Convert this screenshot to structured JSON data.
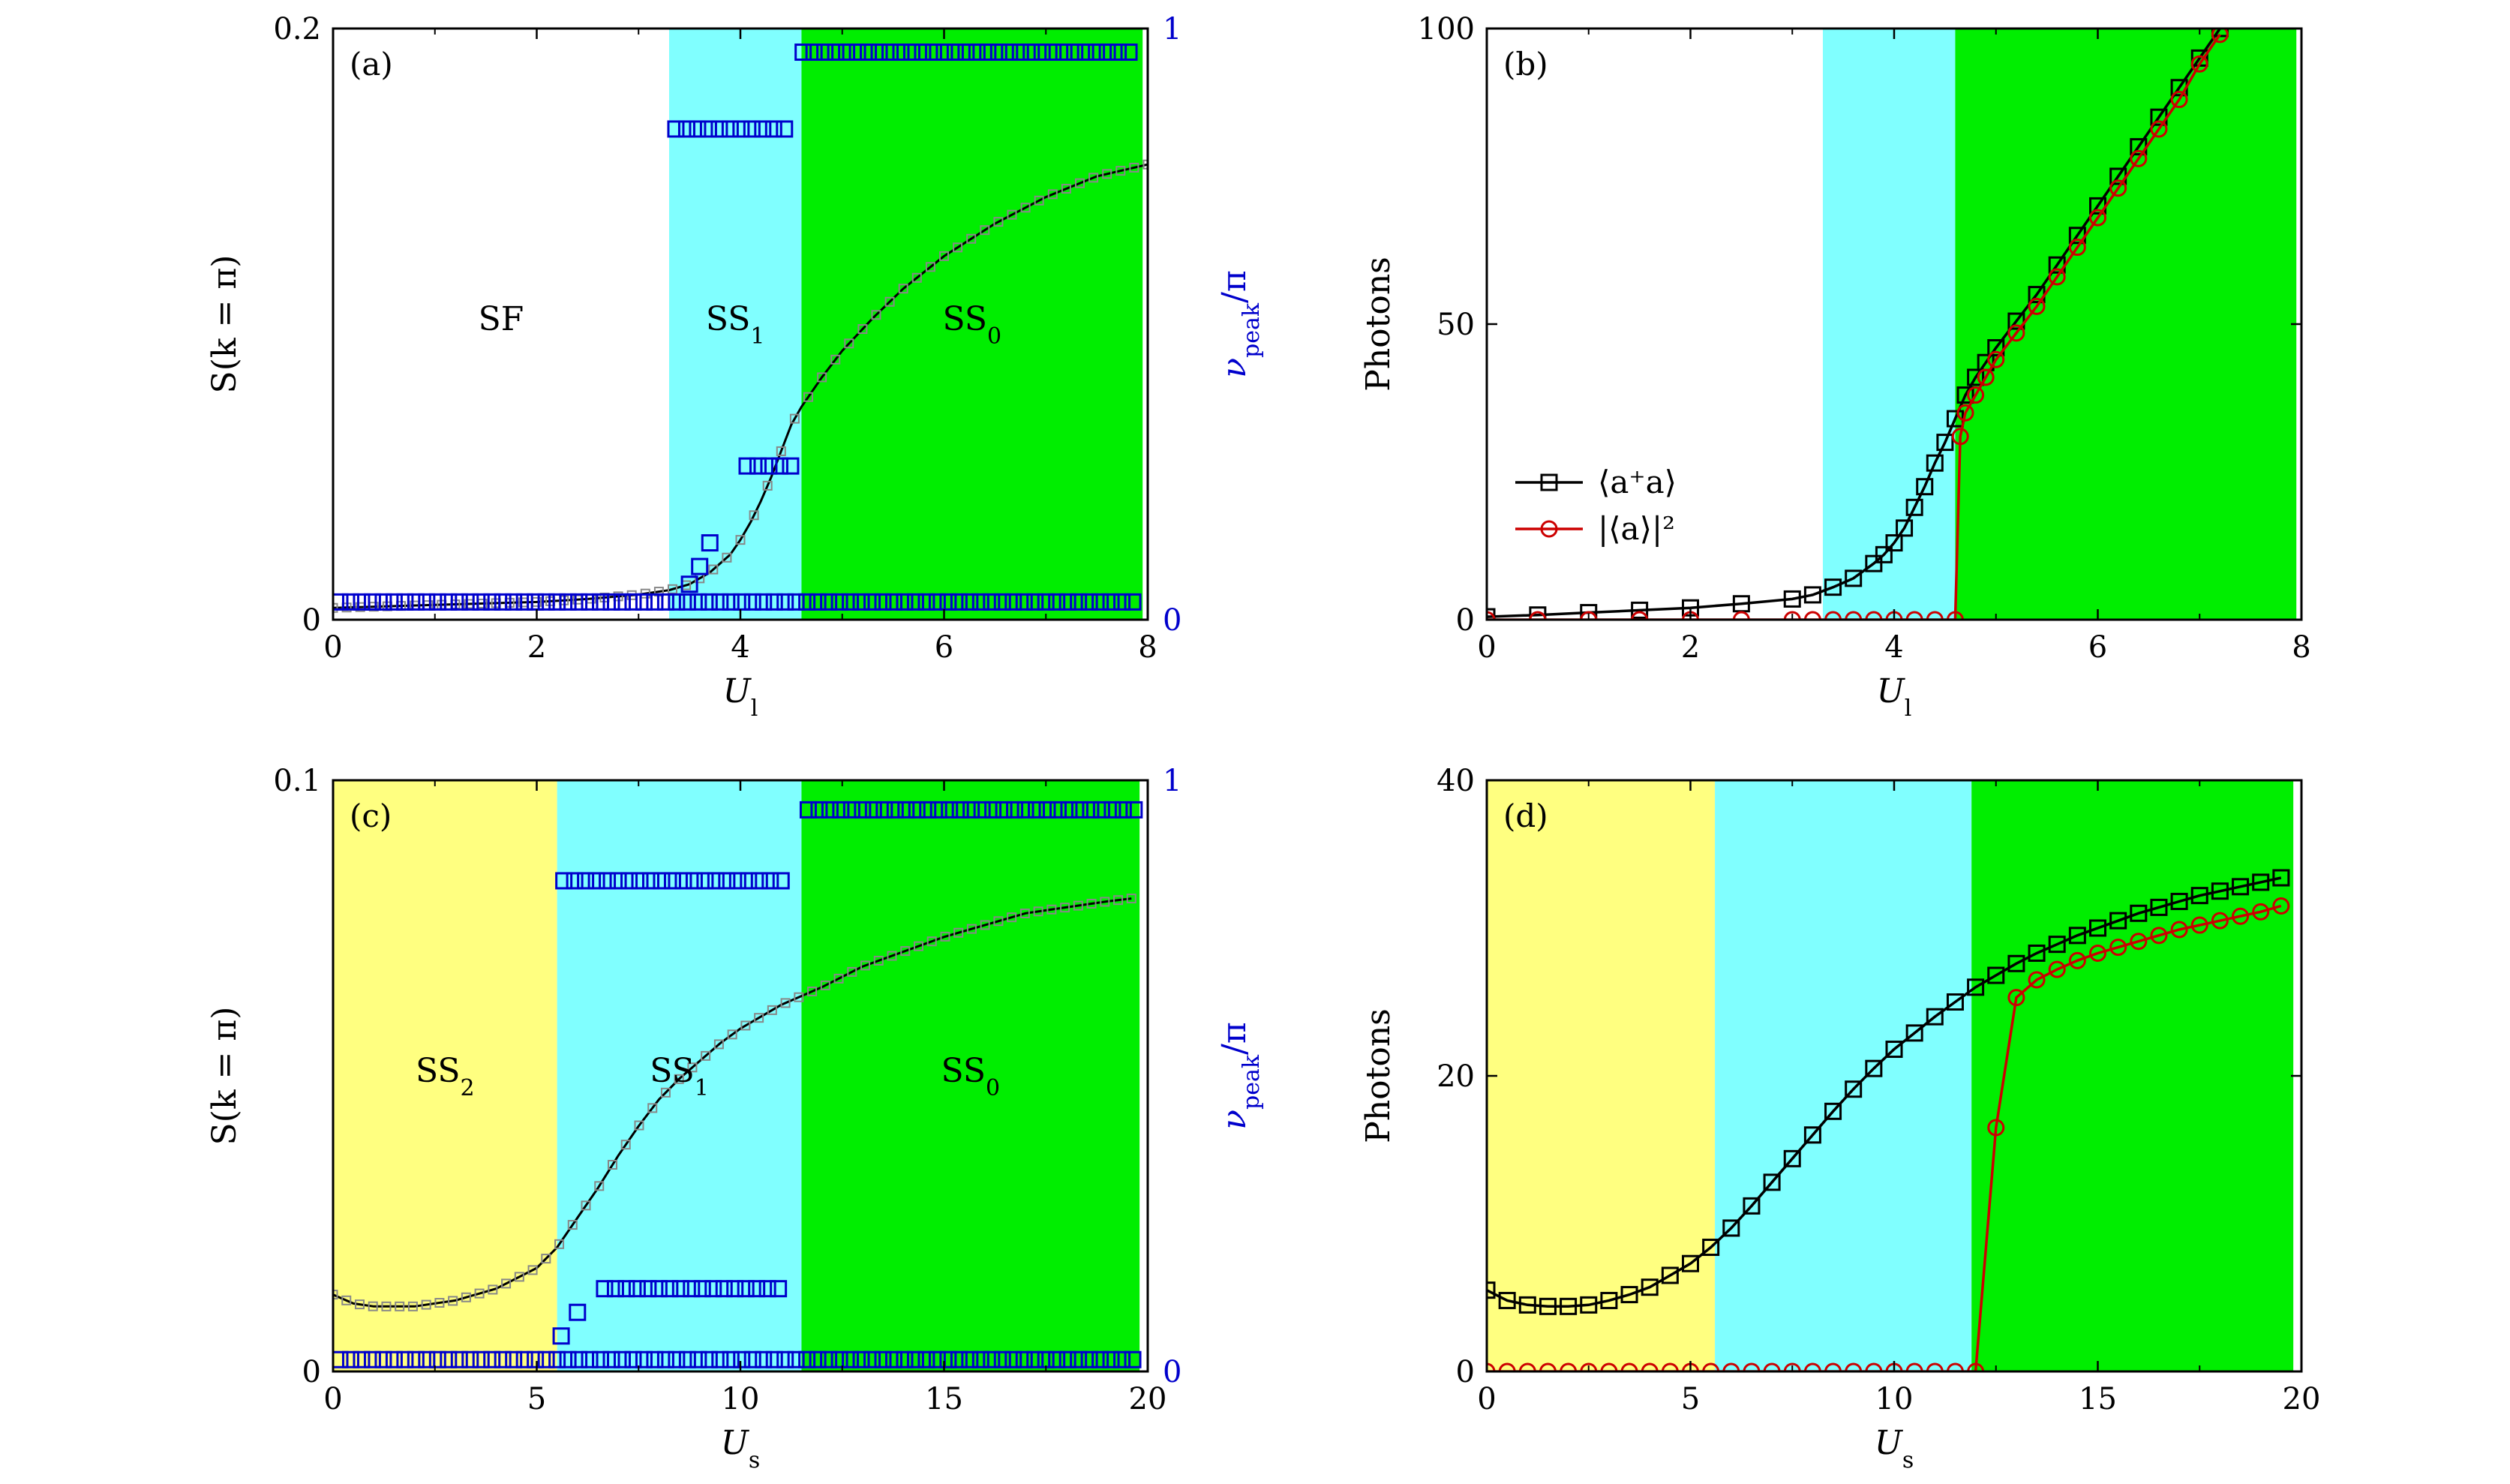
{
  "chart_data": [
    {
      "panel": "(a)",
      "type": "scatter",
      "xlabel": "U_l",
      "ylabel": "S(k = π)",
      "y2label": "ν_peak/π",
      "xlim": [
        0,
        8
      ],
      "ylim": [
        0,
        0.2
      ],
      "y2lim": [
        0,
        1
      ],
      "xticks": [
        "0",
        "2",
        "4",
        "6",
        "8"
      ],
      "yticks": [
        "0",
        "0.2"
      ],
      "y2ticks": [
        "0",
        "1"
      ],
      "regions": [
        {
          "label": "SF",
          "sub": "",
          "x0": 0,
          "x1": 3.3,
          "color": "#ffffff"
        },
        {
          "label": "SS",
          "sub": "1",
          "x0": 3.3,
          "x1": 4.6,
          "color": "#80ffff"
        },
        {
          "label": "SS",
          "sub": "0",
          "x0": 4.6,
          "x1": 7.95,
          "color": "#00ee00"
        }
      ],
      "s_curve": {
        "x": [
          0,
          0.5,
          1,
          1.5,
          2,
          2.5,
          3,
          3.3,
          3.5,
          3.7,
          3.9,
          4.0,
          4.1,
          4.2,
          4.3,
          4.4,
          4.5,
          4.6,
          4.8,
          5.0,
          5.3,
          5.6,
          6.0,
          6.5,
          7.0,
          7.5,
          8.0
        ],
        "y": [
          0.004,
          0.0045,
          0.005,
          0.0055,
          0.006,
          0.007,
          0.0085,
          0.01,
          0.012,
          0.016,
          0.022,
          0.027,
          0.033,
          0.04,
          0.048,
          0.057,
          0.066,
          0.072,
          0.082,
          0.091,
          0.102,
          0.112,
          0.123,
          0.134,
          0.143,
          0.15,
          0.154
        ]
      },
      "nu_peak": [
        {
          "x0": 0,
          "x1": 7.95,
          "y": 0.03
        },
        {
          "x0": 3.3,
          "x1": 4.55,
          "y": 0.83
        },
        {
          "x0": 4.55,
          "x1": 7.95,
          "y": 0.96
        },
        {
          "x0": 4.0,
          "x1": 4.55,
          "y": 0.26
        }
      ],
      "nu_peak_points": [
        {
          "x": 3.5,
          "y": 0.06
        },
        {
          "x": 3.6,
          "y": 0.09
        },
        {
          "x": 3.7,
          "y": 0.13
        }
      ]
    },
    {
      "panel": "(b)",
      "type": "line",
      "xlabel": "U_l",
      "ylabel": "Photons",
      "xlim": [
        0,
        8
      ],
      "ylim": [
        0,
        100
      ],
      "xticks": [
        "0",
        "2",
        "4",
        "6",
        "8"
      ],
      "yticks": [
        "0",
        "50",
        "100"
      ],
      "regions": [
        {
          "x0": 3.3,
          "x1": 4.6,
          "color": "#80ffff"
        },
        {
          "x0": 4.6,
          "x1": 7.95,
          "color": "#00ee00"
        }
      ],
      "series": [
        {
          "name": "⟨a⁺a⟩",
          "color": "#000000",
          "marker": "square",
          "x": [
            0,
            0.5,
            1,
            1.5,
            2,
            2.5,
            3,
            3.2,
            3.4,
            3.6,
            3.8,
            3.9,
            4.0,
            4.1,
            4.2,
            4.3,
            4.4,
            4.5,
            4.6,
            4.7,
            4.8,
            4.9,
            5.0,
            5.2,
            5.4,
            5.6,
            5.8,
            6.0,
            6.2,
            6.4,
            6.6,
            6.8,
            7.0,
            7.2
          ],
          "y": [
            0.5,
            0.8,
            1.2,
            1.6,
            2.0,
            2.7,
            3.5,
            4.2,
            5.5,
            7.0,
            9.5,
            11,
            13,
            15.5,
            19,
            22.5,
            26.5,
            30,
            34,
            38,
            41,
            43.5,
            46,
            50.5,
            55,
            60,
            65,
            70,
            75,
            80,
            85,
            90,
            95,
            100
          ]
        },
        {
          "name": "|⟨a⟩|²",
          "color": "#cc0000",
          "marker": "circle",
          "x": [
            0,
            0.5,
            1,
            1.5,
            2,
            2.5,
            3,
            3.2,
            3.4,
            3.6,
            3.8,
            4.0,
            4.2,
            4.4,
            4.6,
            4.65,
            4.7,
            4.8,
            4.9,
            5.0,
            5.2,
            5.4,
            5.6,
            5.8,
            6.0,
            6.2,
            6.4,
            6.6,
            6.8,
            7.0,
            7.2
          ],
          "y": [
            0,
            0,
            0,
            0,
            0,
            0,
            0,
            0,
            0,
            0,
            0,
            0,
            0,
            0,
            0,
            31,
            35,
            38,
            41,
            44,
            48.5,
            53,
            58,
            63,
            68,
            73,
            78,
            83,
            88,
            94,
            99
          ]
        }
      ],
      "legend": "center-left"
    },
    {
      "panel": "(c)",
      "type": "scatter",
      "xlabel": "U_s",
      "ylabel": "S(k = π)",
      "y2label": "ν_peak/π",
      "xlim": [
        0,
        20
      ],
      "ylim": [
        0,
        0.1
      ],
      "y2lim": [
        0,
        1
      ],
      "xticks": [
        "0",
        "5",
        "10",
        "15",
        "20"
      ],
      "yticks": [
        "0",
        "0.1"
      ],
      "y2ticks": [
        "0",
        "1"
      ],
      "regions": [
        {
          "label": "SS",
          "sub": "2",
          "x0": 0,
          "x1": 5.5,
          "color": "#ffff80"
        },
        {
          "label": "SS",
          "sub": "1",
          "x0": 5.5,
          "x1": 11.5,
          "color": "#80ffff"
        },
        {
          "label": "SS",
          "sub": "0",
          "x0": 11.5,
          "x1": 19.8,
          "color": "#00ee00"
        }
      ],
      "s_curve": {
        "x": [
          0,
          0.5,
          1,
          2,
          3,
          4,
          5,
          5.5,
          6,
          6.5,
          7,
          7.5,
          8,
          8.5,
          9,
          9.5,
          10,
          10.5,
          11,
          11.5,
          12,
          13,
          14,
          15,
          16,
          16.5,
          17,
          18,
          19,
          19.6
        ],
        "y": [
          0.013,
          0.0115,
          0.011,
          0.011,
          0.012,
          0.014,
          0.0175,
          0.021,
          0.026,
          0.031,
          0.0365,
          0.0415,
          0.046,
          0.0495,
          0.0525,
          0.0555,
          0.058,
          0.06,
          0.062,
          0.0635,
          0.065,
          0.0685,
          0.071,
          0.0735,
          0.0755,
          0.0765,
          0.0775,
          0.0785,
          0.0795,
          0.08
        ]
      },
      "nu_peak": [
        {
          "x0": 0,
          "x1": 19.8,
          "y": 0.02
        },
        {
          "x0": 5.5,
          "x1": 11.3,
          "y": 0.83
        },
        {
          "x0": 11.5,
          "x1": 19.8,
          "y": 0.95
        },
        {
          "x0": 6.5,
          "x1": 11.3,
          "y": 0.14
        }
      ],
      "nu_peak_points": [
        {
          "x": 5.6,
          "y": 0.06
        },
        {
          "x": 6.0,
          "y": 0.1
        }
      ]
    },
    {
      "panel": "(d)",
      "type": "line",
      "xlabel": "U_s",
      "ylabel": "Photons",
      "xlim": [
        0,
        20
      ],
      "ylim": [
        0,
        40
      ],
      "xticks": [
        "0",
        "5",
        "10",
        "15",
        "20"
      ],
      "yticks": [
        "0",
        "20",
        "40"
      ],
      "regions": [
        {
          "x0": 0,
          "x1": 5.6,
          "color": "#ffff80"
        },
        {
          "x0": 5.6,
          "x1": 11.9,
          "color": "#80ffff"
        },
        {
          "x0": 11.9,
          "x1": 19.8,
          "color": "#00ee00"
        }
      ],
      "series": [
        {
          "name": "⟨a⁺a⟩",
          "color": "#000000",
          "marker": "square",
          "x": [
            0,
            0.5,
            1,
            1.5,
            2,
            2.5,
            3,
            3.5,
            4,
            4.5,
            5,
            5.5,
            6,
            6.5,
            7,
            7.5,
            8,
            8.5,
            9,
            9.5,
            10,
            10.5,
            11,
            11.5,
            12,
            12.5,
            13,
            13.5,
            14,
            14.5,
            15,
            15.5,
            16,
            16.5,
            17,
            17.5,
            18,
            18.5,
            19,
            19.5
          ],
          "y": [
            5.5,
            4.8,
            4.5,
            4.4,
            4.4,
            4.5,
            4.8,
            5.2,
            5.7,
            6.5,
            7.3,
            8.4,
            9.7,
            11.2,
            12.8,
            14.4,
            16,
            17.6,
            19.1,
            20.5,
            21.8,
            22.9,
            24,
            25,
            26,
            26.8,
            27.6,
            28.3,
            28.9,
            29.5,
            30,
            30.5,
            31,
            31.4,
            31.8,
            32.2,
            32.5,
            32.8,
            33.1,
            33.4
          ]
        },
        {
          "name": "|⟨a⟩|²",
          "color": "#cc0000",
          "marker": "circle",
          "x": [
            0,
            0.5,
            1,
            1.5,
            2,
            2.5,
            3,
            3.5,
            4,
            4.5,
            5,
            5.5,
            6,
            6.5,
            7,
            7.5,
            8,
            8.5,
            9,
            9.5,
            10,
            10.5,
            11,
            11.5,
            12,
            12.5,
            13,
            13.5,
            14,
            14.5,
            15,
            15.5,
            16,
            16.5,
            17,
            17.5,
            18,
            18.5,
            19,
            19.5
          ],
          "y": [
            0,
            0,
            0,
            0,
            0,
            0,
            0,
            0,
            0,
            0,
            0,
            0,
            0,
            0,
            0,
            0,
            0,
            0,
            0,
            0,
            0,
            0,
            0,
            0,
            0,
            16.5,
            25.3,
            26.5,
            27.2,
            27.8,
            28.3,
            28.7,
            29.1,
            29.5,
            29.9,
            30.2,
            30.5,
            30.8,
            31.1,
            31.5
          ]
        }
      ]
    }
  ]
}
